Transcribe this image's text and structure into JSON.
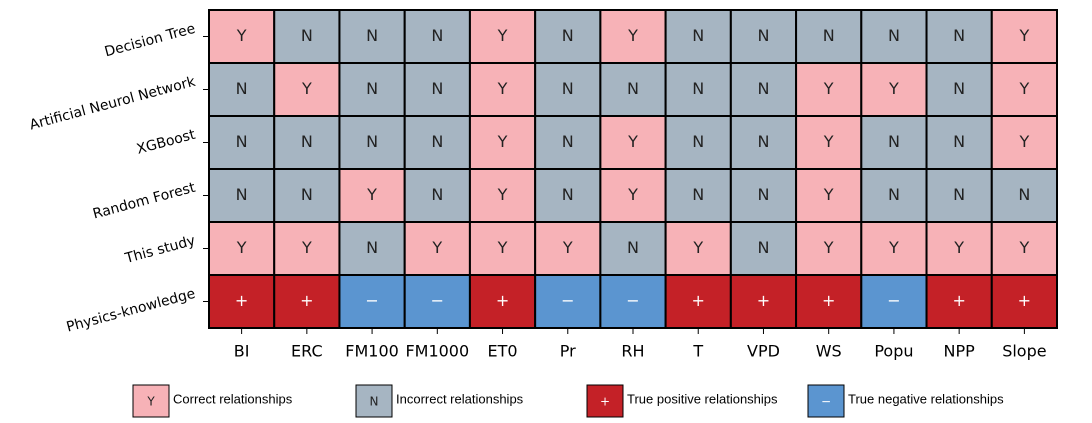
{
  "chart_data": {
    "type": "heatmap",
    "rows": [
      "Decision Tree",
      "Artificial Neurol Network",
      "XGBoost",
      "Random Forest",
      "This study",
      "Physics-knowledge"
    ],
    "categories": [
      "BI",
      "ERC",
      "FM100",
      "FM1000",
      "ET0",
      "Pr",
      "RH",
      "T",
      "VPD",
      "WS",
      "Popu",
      "NPP",
      "Slope"
    ],
    "cells": [
      [
        "Y",
        "N",
        "N",
        "N",
        "Y",
        "N",
        "Y",
        "N",
        "N",
        "N",
        "N",
        "N",
        "Y"
      ],
      [
        "N",
        "Y",
        "N",
        "N",
        "Y",
        "N",
        "N",
        "N",
        "N",
        "Y",
        "Y",
        "N",
        "Y"
      ],
      [
        "N",
        "N",
        "N",
        "N",
        "Y",
        "N",
        "Y",
        "N",
        "N",
        "Y",
        "N",
        "N",
        "Y"
      ],
      [
        "N",
        "N",
        "Y",
        "N",
        "Y",
        "N",
        "Y",
        "N",
        "N",
        "Y",
        "N",
        "N",
        "N"
      ],
      [
        "Y",
        "Y",
        "N",
        "Y",
        "Y",
        "Y",
        "N",
        "Y",
        "N",
        "Y",
        "Y",
        "Y",
        "Y"
      ],
      [
        "+",
        "+",
        "−",
        "−",
        "+",
        "−",
        "−",
        "+",
        "+",
        "+",
        "−",
        "+",
        "+"
      ]
    ],
    "legend": [
      {
        "symbol": "Y",
        "label": "Correct relationships",
        "color": "#f7b2b7",
        "text_color": "#222222"
      },
      {
        "symbol": "N",
        "label": "Incorrect relationships",
        "color": "#a6b5c2",
        "text_color": "#222222"
      },
      {
        "symbol": "+",
        "label": "True positive relationships",
        "color": "#c42127",
        "text_color": "#ffffff"
      },
      {
        "symbol": "−",
        "label": "True negative relationships",
        "color": "#5b95d0",
        "text_color": "#ffffff"
      }
    ]
  }
}
